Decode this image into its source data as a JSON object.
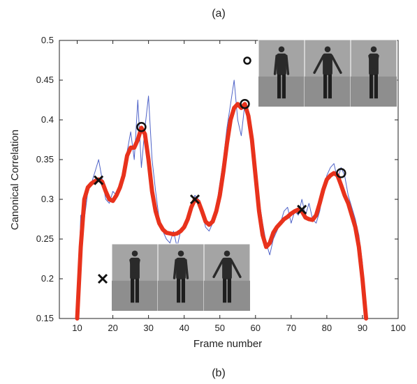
{
  "panel_labels": {
    "top": "(a)",
    "bottom": "(b)"
  },
  "colors": {
    "raw": "#4f63c8",
    "smooth": "#e8321c",
    "marker": "#111111",
    "axis": "#222222"
  },
  "chart_data": {
    "type": "line",
    "xlabel": "Frame number",
    "ylabel": "Canonical Correlation",
    "xlim": [
      5,
      100
    ],
    "ylim": [
      0.15,
      0.5
    ],
    "xticks": [
      10,
      20,
      30,
      40,
      50,
      60,
      70,
      80,
      90,
      100
    ],
    "yticks": [
      0.15,
      0.2,
      0.25,
      0.3,
      0.35,
      0.4,
      0.45,
      0.5
    ],
    "ytick_labels": [
      "0.15",
      "0.2",
      "0.25",
      "0.3",
      "0.35",
      "0.4",
      "0.45",
      "0.5"
    ],
    "grid": false,
    "legend": {
      "circle_marker_position": "top-right, beside top image strip",
      "cross_marker_position": "bottom-left, beside bottom image strip"
    },
    "series": [
      {
        "style": "thin-blue",
        "x": [
          10,
          11,
          12,
          13,
          14,
          15,
          16,
          17,
          18,
          19,
          20,
          21,
          22,
          23,
          24,
          25,
          26,
          27,
          28,
          29,
          30,
          31,
          32,
          33,
          34,
          35,
          36,
          37,
          38,
          39,
          40,
          41,
          42,
          43,
          44,
          45,
          46,
          47,
          48,
          49,
          50,
          51,
          52,
          53,
          54,
          55,
          56,
          57,
          58,
          59,
          60,
          61,
          62,
          63,
          64,
          65,
          66,
          67,
          68,
          69,
          70,
          71,
          72,
          73,
          74,
          75,
          76,
          77,
          78,
          79,
          80,
          81,
          82,
          83,
          84,
          85,
          86,
          87,
          88,
          89,
          90,
          91
        ],
        "y": [
          0.15,
          0.28,
          0.275,
          0.31,
          0.32,
          0.335,
          0.35,
          0.325,
          0.3,
          0.295,
          0.31,
          0.305,
          0.32,
          0.325,
          0.36,
          0.385,
          0.35,
          0.425,
          0.34,
          0.39,
          0.43,
          0.35,
          0.31,
          0.275,
          0.26,
          0.25,
          0.245,
          0.26,
          0.24,
          0.26,
          0.265,
          0.27,
          0.29,
          0.305,
          0.3,
          0.285,
          0.265,
          0.26,
          0.27,
          0.29,
          0.32,
          0.35,
          0.39,
          0.42,
          0.45,
          0.4,
          0.38,
          0.42,
          0.41,
          0.385,
          0.34,
          0.3,
          0.27,
          0.245,
          0.23,
          0.25,
          0.26,
          0.27,
          0.285,
          0.29,
          0.27,
          0.285,
          0.28,
          0.3,
          0.28,
          0.295,
          0.275,
          0.27,
          0.285,
          0.31,
          0.33,
          0.34,
          0.345,
          0.325,
          0.34,
          0.33,
          0.305,
          0.29,
          0.275,
          0.255,
          0.22,
          0.15
        ]
      },
      {
        "style": "thick-red",
        "x": [
          10,
          11,
          12,
          13,
          14,
          15,
          16,
          17,
          18,
          19,
          20,
          21,
          22,
          23,
          24,
          25,
          26,
          27,
          28,
          29,
          30,
          31,
          32,
          33,
          34,
          35,
          36,
          37,
          38,
          39,
          40,
          41,
          42,
          43,
          44,
          45,
          46,
          47,
          48,
          49,
          50,
          51,
          52,
          53,
          54,
          55,
          56,
          57,
          58,
          59,
          60,
          61,
          62,
          63,
          64,
          65,
          66,
          67,
          68,
          69,
          70,
          71,
          72,
          73,
          74,
          75,
          76,
          77,
          78,
          79,
          80,
          81,
          82,
          83,
          84,
          85,
          86,
          87,
          88,
          89,
          90,
          91
        ],
        "y": [
          0.15,
          0.24,
          0.3,
          0.315,
          0.32,
          0.323,
          0.325,
          0.322,
          0.31,
          0.3,
          0.298,
          0.305,
          0.315,
          0.33,
          0.355,
          0.365,
          0.365,
          0.375,
          0.39,
          0.382,
          0.35,
          0.31,
          0.285,
          0.27,
          0.262,
          0.258,
          0.257,
          0.256,
          0.257,
          0.26,
          0.265,
          0.275,
          0.29,
          0.3,
          0.297,
          0.285,
          0.272,
          0.268,
          0.272,
          0.285,
          0.305,
          0.335,
          0.37,
          0.4,
          0.415,
          0.42,
          0.415,
          0.42,
          0.405,
          0.375,
          0.33,
          0.285,
          0.255,
          0.24,
          0.245,
          0.258,
          0.265,
          0.27,
          0.275,
          0.278,
          0.282,
          0.285,
          0.287,
          0.285,
          0.277,
          0.275,
          0.274,
          0.28,
          0.295,
          0.312,
          0.325,
          0.33,
          0.333,
          0.33,
          0.318,
          0.305,
          0.295,
          0.28,
          0.265,
          0.24,
          0.2,
          0.15
        ]
      }
    ],
    "circle_markers": [
      {
        "x": 28,
        "y": 0.391
      },
      {
        "x": 57,
        "y": 0.42
      },
      {
        "x": 84,
        "y": 0.333
      }
    ],
    "cross_markers": [
      {
        "x": 16,
        "y": 0.324
      },
      {
        "x": 43,
        "y": 0.3
      },
      {
        "x": 73,
        "y": 0.287
      }
    ],
    "image_strips": [
      {
        "location": "top-right",
        "frames": 3,
        "marker": "circle"
      },
      {
        "location": "bottom-left",
        "frames": 3,
        "marker": "cross"
      }
    ]
  }
}
